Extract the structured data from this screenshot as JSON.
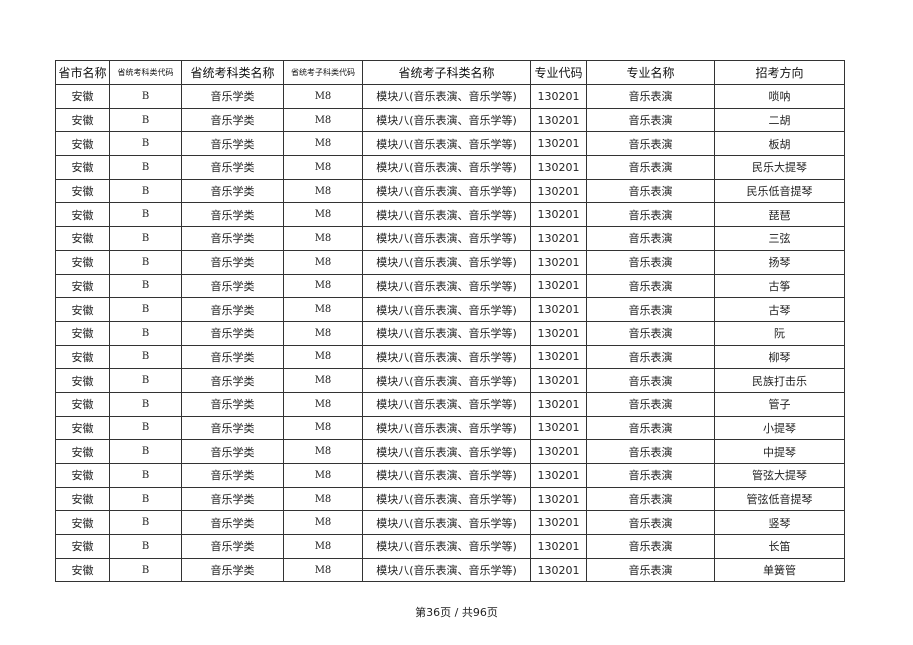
{
  "table": {
    "headers": [
      "省市名称",
      "省统考科类代码",
      "省统考科类名称",
      "省统考子科类代码",
      "省统考子科类名称",
      "专业代码",
      "专业名称",
      "招考方向"
    ],
    "rows": [
      [
        "安徽",
        "B",
        "音乐学类",
        "M8",
        "模块八(音乐表演、音乐学等)",
        "130201",
        "音乐表演",
        "唢呐"
      ],
      [
        "安徽",
        "B",
        "音乐学类",
        "M8",
        "模块八(音乐表演、音乐学等)",
        "130201",
        "音乐表演",
        "二胡"
      ],
      [
        "安徽",
        "B",
        "音乐学类",
        "M8",
        "模块八(音乐表演、音乐学等)",
        "130201",
        "音乐表演",
        "板胡"
      ],
      [
        "安徽",
        "B",
        "音乐学类",
        "M8",
        "模块八(音乐表演、音乐学等)",
        "130201",
        "音乐表演",
        "民乐大提琴"
      ],
      [
        "安徽",
        "B",
        "音乐学类",
        "M8",
        "模块八(音乐表演、音乐学等)",
        "130201",
        "音乐表演",
        "民乐低音提琴"
      ],
      [
        "安徽",
        "B",
        "音乐学类",
        "M8",
        "模块八(音乐表演、音乐学等)",
        "130201",
        "音乐表演",
        "琵琶"
      ],
      [
        "安徽",
        "B",
        "音乐学类",
        "M8",
        "模块八(音乐表演、音乐学等)",
        "130201",
        "音乐表演",
        "三弦"
      ],
      [
        "安徽",
        "B",
        "音乐学类",
        "M8",
        "模块八(音乐表演、音乐学等)",
        "130201",
        "音乐表演",
        "扬琴"
      ],
      [
        "安徽",
        "B",
        "音乐学类",
        "M8",
        "模块八(音乐表演、音乐学等)",
        "130201",
        "音乐表演",
        "古筝"
      ],
      [
        "安徽",
        "B",
        "音乐学类",
        "M8",
        "模块八(音乐表演、音乐学等)",
        "130201",
        "音乐表演",
        "古琴"
      ],
      [
        "安徽",
        "B",
        "音乐学类",
        "M8",
        "模块八(音乐表演、音乐学等)",
        "130201",
        "音乐表演",
        "阮"
      ],
      [
        "安徽",
        "B",
        "音乐学类",
        "M8",
        "模块八(音乐表演、音乐学等)",
        "130201",
        "音乐表演",
        "柳琴"
      ],
      [
        "安徽",
        "B",
        "音乐学类",
        "M8",
        "模块八(音乐表演、音乐学等)",
        "130201",
        "音乐表演",
        "民族打击乐"
      ],
      [
        "安徽",
        "B",
        "音乐学类",
        "M8",
        "模块八(音乐表演、音乐学等)",
        "130201",
        "音乐表演",
        "管子"
      ],
      [
        "安徽",
        "B",
        "音乐学类",
        "M8",
        "模块八(音乐表演、音乐学等)",
        "130201",
        "音乐表演",
        "小提琴"
      ],
      [
        "安徽",
        "B",
        "音乐学类",
        "M8",
        "模块八(音乐表演、音乐学等)",
        "130201",
        "音乐表演",
        "中提琴"
      ],
      [
        "安徽",
        "B",
        "音乐学类",
        "M8",
        "模块八(音乐表演、音乐学等)",
        "130201",
        "音乐表演",
        "管弦大提琴"
      ],
      [
        "安徽",
        "B",
        "音乐学类",
        "M8",
        "模块八(音乐表演、音乐学等)",
        "130201",
        "音乐表演",
        "管弦低音提琴"
      ],
      [
        "安徽",
        "B",
        "音乐学类",
        "M8",
        "模块八(音乐表演、音乐学等)",
        "130201",
        "音乐表演",
        "竖琴"
      ],
      [
        "安徽",
        "B",
        "音乐学类",
        "M8",
        "模块八(音乐表演、音乐学等)",
        "130201",
        "音乐表演",
        "长笛"
      ],
      [
        "安徽",
        "B",
        "音乐学类",
        "M8",
        "模块八(音乐表演、音乐学等)",
        "130201",
        "音乐表演",
        "单簧管"
      ]
    ]
  },
  "footer": {
    "page_indicator": "第36页  /  共96页"
  }
}
